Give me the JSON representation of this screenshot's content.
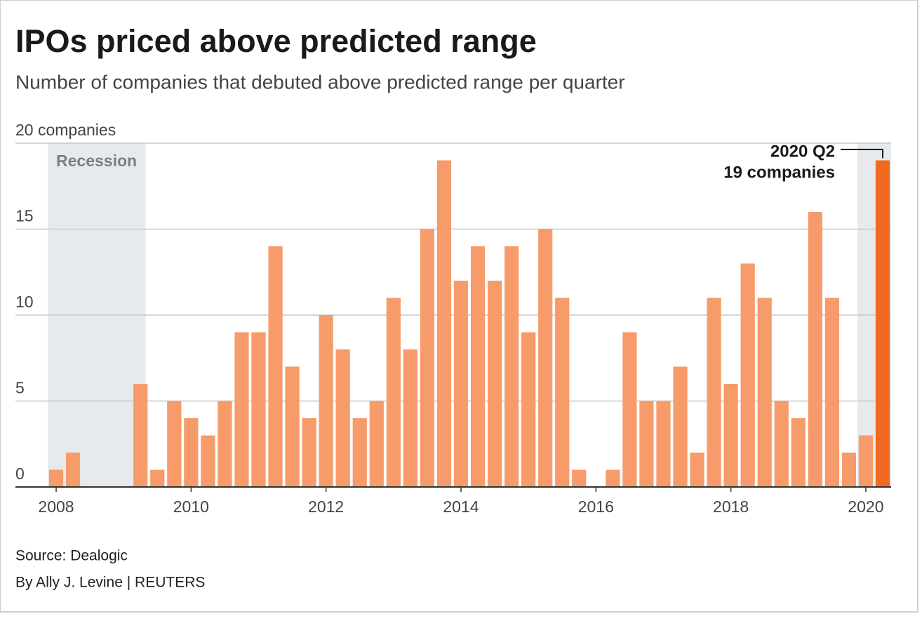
{
  "chart_data": {
    "type": "bar",
    "title": "IPOs priced above predicted range",
    "subtitle": "Number of companies that debuted above predicted range per quarter",
    "categories": [
      "2008",
      null,
      null,
      null,
      null,
      null,
      null,
      null,
      "2010",
      null,
      null,
      null,
      null,
      null,
      null,
      null,
      "2012",
      null,
      null,
      null,
      null,
      null,
      null,
      null,
      "2014",
      null,
      null,
      null,
      null,
      null,
      null,
      null,
      "2016",
      null,
      null,
      null,
      null,
      null,
      null,
      null,
      "2018",
      null,
      null,
      null,
      null,
      null,
      null,
      null,
      "2020",
      null
    ],
    "values": [
      1,
      2,
      0,
      0,
      0,
      6,
      1,
      5,
      4,
      3,
      5,
      9,
      9,
      14,
      7,
      4,
      10,
      8,
      4,
      5,
      11,
      8,
      15,
      19,
      12,
      14,
      12,
      14,
      9,
      15,
      11,
      1,
      0,
      1,
      9,
      5,
      5,
      7,
      2,
      11,
      6,
      13,
      11,
      5,
      4,
      16,
      11,
      2,
      3,
      19
    ],
    "colors": [
      "#f79b6b",
      "#f79b6b",
      "#f79b6b",
      "#f79b6b",
      "#f79b6b",
      "#f79b6b",
      "#f79b6b",
      "#f79b6b",
      "#f79b6b",
      "#f79b6b",
      "#f79b6b",
      "#f79b6b",
      "#f79b6b",
      "#f79b6b",
      "#f79b6b",
      "#f79b6b",
      "#f79b6b",
      "#f79b6b",
      "#f79b6b",
      "#f79b6b",
      "#f79b6b",
      "#f79b6b",
      "#f79b6b",
      "#f79b6b",
      "#f79b6b",
      "#f79b6b",
      "#f79b6b",
      "#f79b6b",
      "#f79b6b",
      "#f79b6b",
      "#f79b6b",
      "#f79b6b",
      "#f79b6b",
      "#f79b6b",
      "#f79b6b",
      "#f79b6b",
      "#f79b6b",
      "#f79b6b",
      "#f79b6b",
      "#f79b6b",
      "#f79b6b",
      "#f79b6b",
      "#f79b6b",
      "#f79b6b",
      "#f79b6b",
      "#f79b6b",
      "#f79b6b",
      "#f79b6b",
      "#f79b6b",
      "#f26a22"
    ],
    "ylim": [
      0,
      20
    ],
    "yticks": [
      0,
      5,
      10,
      15,
      {
        "value": 20,
        "label": "20 companies"
      }
    ],
    "grid": true,
    "shading_label": "Recession",
    "annotation": [
      "2020 Q2",
      "19 companies"
    ],
    "source": "Source: Dealogic",
    "credit": "By Ally J. Levine | REUTERS"
  }
}
